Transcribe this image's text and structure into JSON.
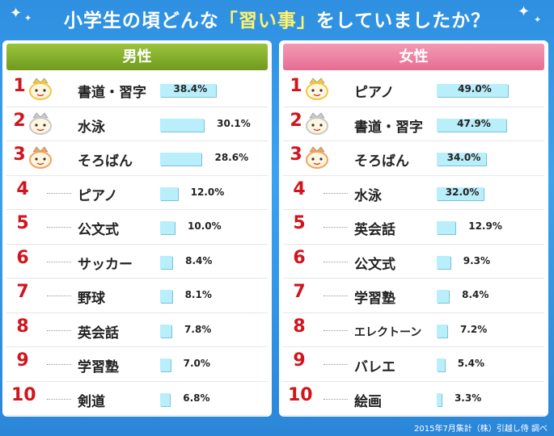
{
  "title": {
    "prefix": "小学生の頃どんな",
    "highlight": "「習い事」",
    "suffix": "をしていましたか？"
  },
  "footnote": "2015年7月集計（株）引越し侍 調べ",
  "colors": {
    "background": "#2f8fe0",
    "male_header": "#7fa92a",
    "female_header": "#ec7da0",
    "bar": "#b9eefb",
    "rank": "#d2141c"
  },
  "chart_data": [
    {
      "type": "bar",
      "title": "男性",
      "unit": "%",
      "categories": [
        "書道・習字",
        "水泳",
        "そろばん",
        "ピアノ",
        "公文式",
        "サッカー",
        "野球",
        "英会話",
        "学習塾",
        "剣道"
      ],
      "values": [
        38.4,
        30.1,
        28.6,
        12.0,
        10.0,
        8.4,
        8.1,
        7.8,
        7.0,
        6.8
      ],
      "labels": [
        "38.4%",
        "30.1%",
        "28.6%",
        "12.0%",
        "10.0%",
        "8.4%",
        "8.1%",
        "7.8%",
        "7.0%",
        "6.8%"
      ],
      "ranks": [
        "1",
        "2",
        "3",
        "4",
        "5",
        "6",
        "7",
        "8",
        "9",
        "10"
      ]
    },
    {
      "type": "bar",
      "title": "女性",
      "unit": "%",
      "categories": [
        "ピアノ",
        "書道・習字",
        "そろばん",
        "水泳",
        "英会話",
        "公文式",
        "学習塾",
        "エレクトーン",
        "バレエ",
        "絵画"
      ],
      "values": [
        49.0,
        47.9,
        34.0,
        32.0,
        12.9,
        9.3,
        8.4,
        7.2,
        5.4,
        3.3
      ],
      "labels": [
        "49.0%",
        "47.9%",
        "34.0%",
        "32.0%",
        "12.9%",
        "9.3%",
        "8.4%",
        "7.2%",
        "5.4%",
        "3.3%"
      ],
      "ranks": [
        "1",
        "2",
        "3",
        "4",
        "5",
        "6",
        "7",
        "8",
        "9",
        "10"
      ]
    }
  ]
}
